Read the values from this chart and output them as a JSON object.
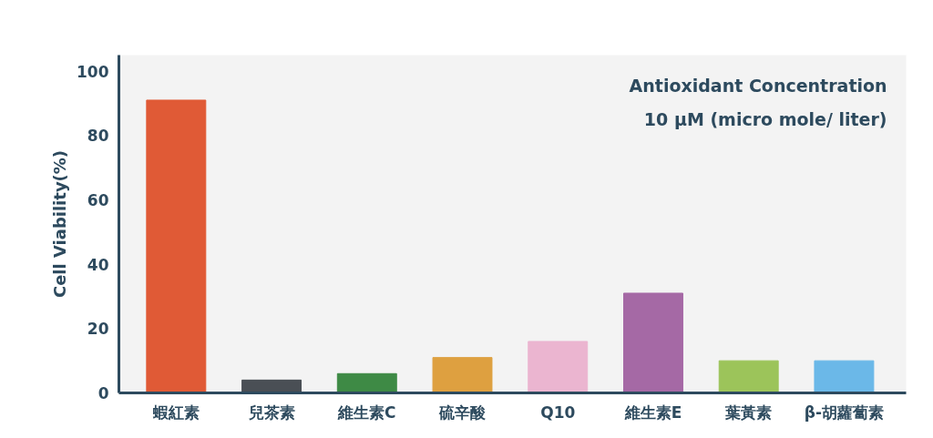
{
  "chart_data": {
    "type": "bar",
    "ylabel": "Cell Viability(%)",
    "categories": [
      "蝦紅素",
      "兒茶素",
      "維生素C",
      "硫辛酸",
      "Q10",
      "維生素E",
      "葉黃素",
      "β-胡蘿蔔素"
    ],
    "values": [
      91,
      4,
      6,
      11,
      16,
      31,
      10,
      10
    ],
    "colors": [
      "#e05a36",
      "#4a4f55",
      "#3e8a45",
      "#dea040",
      "#ebb5d0",
      "#a569a5",
      "#9cc45a",
      "#6bb8e8"
    ],
    "ylim": [
      0,
      105
    ],
    "yticks": [
      0,
      20,
      40,
      60,
      80,
      100
    ],
    "grid": false,
    "annotations": [
      "Antioxidant Concentration",
      "10 μM (micro mole/ liter)"
    ]
  }
}
